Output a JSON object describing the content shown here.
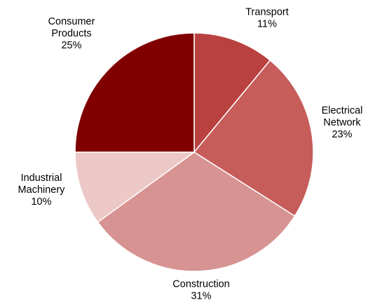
{
  "chart_data": {
    "type": "pie",
    "start_angle_deg": 0,
    "direction": "clockwise",
    "slice_border_color": "#ffffff",
    "slices": [
      {
        "name_lines": [
          "Transport"
        ],
        "value": 11,
        "value_label": "11%",
        "color": "#b94241"
      },
      {
        "name_lines": [
          "Electrical",
          "Network"
        ],
        "value": 23,
        "value_label": "23%",
        "color": "#c65d5b"
      },
      {
        "name_lines": [
          "Construction"
        ],
        "value": 31,
        "value_label": "31%",
        "color": "#d79391"
      },
      {
        "name_lines": [
          "Industrial",
          "Machinery"
        ],
        "value": 10,
        "value_label": "10%",
        "color": "#ecc8c7"
      },
      {
        "name_lines": [
          "Consumer",
          "Products"
        ],
        "value": 25,
        "value_label": "25%",
        "color": "#800000"
      }
    ]
  }
}
